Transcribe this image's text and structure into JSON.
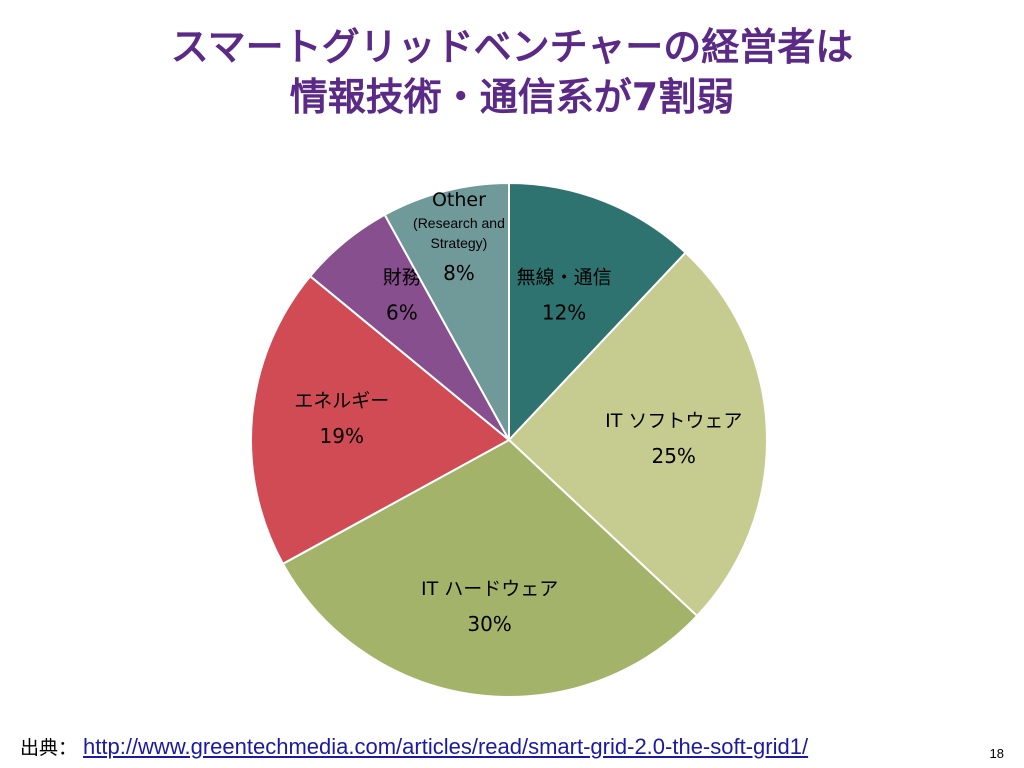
{
  "title": {
    "line1": "スマートグリッドベンチャーの経営者は",
    "line2": "情報技術・通信系が7割弱"
  },
  "chart_data": {
    "type": "pie",
    "start_angle_deg": 0,
    "direction": "clockwise",
    "slices": [
      {
        "name": "無線・通信",
        "value": 12,
        "label": "12%",
        "color": "#2e7370"
      },
      {
        "name": "IT ソフトウェア",
        "value": 25,
        "label": "25%",
        "color": "#c6cc90"
      },
      {
        "name": "IT ハードウェア",
        "value": 30,
        "label": "30%",
        "color": "#a3b46a"
      },
      {
        "name": "エネルギー",
        "value": 19,
        "label": "19%",
        "color": "#d04b53"
      },
      {
        "name": "財務",
        "value": 6,
        "label": "6%",
        "color": "#874f8d"
      },
      {
        "name": "Other",
        "sublabel": "(Research and Strategy)",
        "value": 8,
        "label": "8%",
        "color": "#6f9a99"
      }
    ]
  },
  "footer": {
    "source_label": "出典：",
    "url": "http://www.greentechmedia.com/articles/read/smart-grid-2.0-the-soft-grid1/"
  },
  "page_number": "18"
}
